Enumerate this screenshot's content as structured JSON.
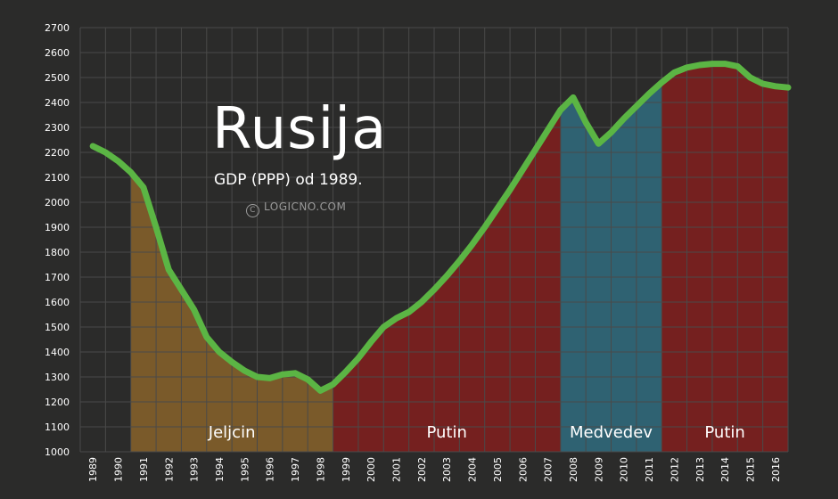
{
  "header": {
    "title": "Rusija",
    "subtitle": "GDP (PPP) od 1989.",
    "credit": "LOGICNO.COM",
    "credit_icon": "copyright-icon"
  },
  "colors": {
    "background": "#2b2b2a",
    "grid": "#4a4a49",
    "line": "#5bb544",
    "jeljcin": "#7a5a2a",
    "putin": "#75201f",
    "medvedev": "#2f6272",
    "text": "#ffffff"
  },
  "chart_data": {
    "type": "area",
    "title": "Rusija",
    "subtitle": "GDP (PPP) od 1989.",
    "xlabel": "",
    "ylabel": "",
    "ylim": [
      1000,
      2700
    ],
    "y_ticks": [
      1000,
      1100,
      1200,
      1300,
      1400,
      1500,
      1600,
      1700,
      1800,
      1900,
      2000,
      2100,
      2200,
      2300,
      2400,
      2500,
      2600,
      2700
    ],
    "categories": [
      "1989",
      "1990",
      "1991",
      "1992",
      "1993",
      "1994",
      "1995",
      "1996",
      "1997",
      "1998",
      "1999",
      "2000",
      "2001",
      "2002",
      "2003",
      "2004",
      "2005",
      "2006",
      "2007",
      "2008",
      "2009",
      "2010",
      "2011",
      "2012",
      "2013",
      "2014",
      "2015",
      "2016"
    ],
    "grid": true,
    "series": [
      {
        "values": [
          [
            1989.0,
            2225
          ],
          [
            1989.5,
            2200
          ],
          [
            1990.0,
            2165
          ],
          [
            1990.5,
            2120
          ],
          [
            1991.0,
            2060
          ],
          [
            1991.5,
            1900
          ],
          [
            1992.0,
            1730
          ],
          [
            1992.5,
            1650
          ],
          [
            1993.0,
            1570
          ],
          [
            1993.5,
            1460
          ],
          [
            1994.0,
            1400
          ],
          [
            1994.5,
            1360
          ],
          [
            1995.0,
            1325
          ],
          [
            1995.5,
            1300
          ],
          [
            1996.0,
            1295
          ],
          [
            1996.5,
            1310
          ],
          [
            1997.0,
            1315
          ],
          [
            1997.5,
            1290
          ],
          [
            1998.0,
            1245
          ],
          [
            1998.5,
            1270
          ],
          [
            1999.0,
            1320
          ],
          [
            1999.5,
            1375
          ],
          [
            2000.0,
            1440
          ],
          [
            2000.5,
            1500
          ],
          [
            2001.0,
            1535
          ],
          [
            2001.5,
            1560
          ],
          [
            2002.0,
            1600
          ],
          [
            2002.5,
            1650
          ],
          [
            2003.0,
            1705
          ],
          [
            2003.5,
            1765
          ],
          [
            2004.0,
            1830
          ],
          [
            2004.5,
            1900
          ],
          [
            2005.0,
            1975
          ],
          [
            2005.5,
            2050
          ],
          [
            2006.0,
            2130
          ],
          [
            2006.5,
            2210
          ],
          [
            2007.0,
            2290
          ],
          [
            2007.5,
            2370
          ],
          [
            2008.0,
            2420
          ],
          [
            2008.5,
            2320
          ],
          [
            2009.0,
            2235
          ],
          [
            2009.5,
            2280
          ],
          [
            2010.0,
            2335
          ],
          [
            2010.5,
            2385
          ],
          [
            2011.0,
            2435
          ],
          [
            2011.5,
            2480
          ],
          [
            2012.0,
            2520
          ],
          [
            2012.5,
            2540
          ],
          [
            2013.0,
            2550
          ],
          [
            2013.5,
            2555
          ],
          [
            2014.0,
            2555
          ],
          [
            2014.5,
            2545
          ],
          [
            2015.0,
            2500
          ],
          [
            2015.5,
            2475
          ],
          [
            2016.0,
            2465
          ],
          [
            2016.5,
            2460
          ]
        ]
      }
    ],
    "annotations": [
      {
        "label": "Jeljcin",
        "from_year": 1990.5,
        "to_year": 1998.5,
        "color": "#7a5a2a"
      },
      {
        "label": "Putin",
        "from_year": 1998.5,
        "to_year": 2007.5,
        "color": "#75201f"
      },
      {
        "label": "Medvedev",
        "from_year": 2007.5,
        "to_year": 2011.5,
        "color": "#2f6272"
      },
      {
        "label": "Putin",
        "from_year": 2011.5,
        "to_year": 2016.5,
        "color": "#75201f"
      }
    ]
  }
}
